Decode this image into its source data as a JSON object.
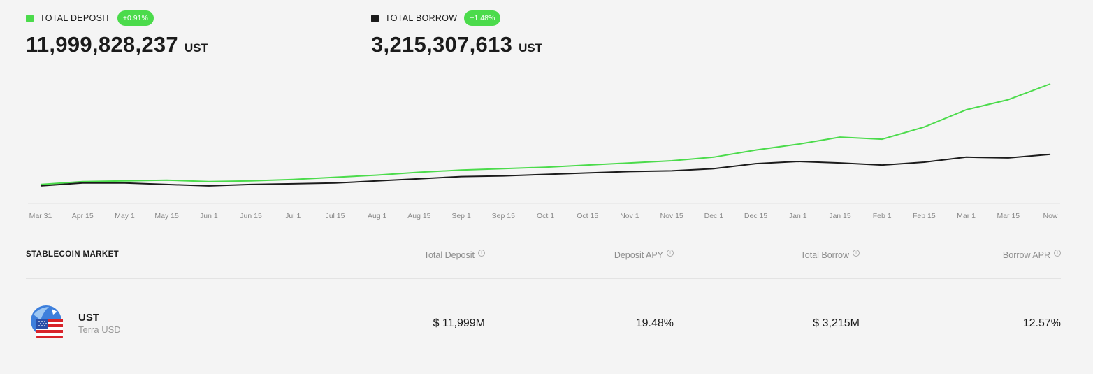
{
  "summary": {
    "deposit": {
      "label": "TOTAL DEPOSIT",
      "change": "+0.91%",
      "value": "11,999,828,237",
      "unit": "UST",
      "color": "#4bdb4b"
    },
    "borrow": {
      "label": "TOTAL BORROW",
      "change": "+1.48%",
      "value": "3,215,307,613",
      "unit": "UST",
      "color": "#1b1b1b"
    }
  },
  "chart_data": {
    "type": "line",
    "x": [
      "Mar 31",
      "Apr 15",
      "May 1",
      "May 15",
      "Jun 1",
      "Jun 15",
      "Jul 1",
      "Jul 15",
      "Aug 1",
      "Aug 15",
      "Sep 1",
      "Sep 15",
      "Oct 1",
      "Oct 15",
      "Nov 1",
      "Nov 15",
      "Dec 1",
      "Dec 15",
      "Jan 1",
      "Jan 15",
      "Feb 1",
      "Feb 15",
      "Mar 1",
      "Mar 15",
      "Now"
    ],
    "series": [
      {
        "color": "#4bdb4b",
        "values": [
          0.2,
          0.4,
          0.45,
          0.5,
          0.4,
          0.45,
          0.55,
          0.7,
          0.85,
          1.05,
          1.2,
          1.3,
          1.4,
          1.55,
          1.7,
          1.85,
          2.1,
          2.6,
          3.0,
          3.5,
          3.35,
          4.2,
          5.4,
          6.1,
          7.2
        ]
      },
      {
        "color": "#1b1b1b",
        "values": [
          0.1,
          0.3,
          0.3,
          0.2,
          0.1,
          0.2,
          0.25,
          0.3,
          0.45,
          0.6,
          0.75,
          0.8,
          0.9,
          1.0,
          1.1,
          1.15,
          1.3,
          1.65,
          1.8,
          1.7,
          1.55,
          1.75,
          2.1,
          2.05,
          2.3
        ]
      }
    ],
    "grid": false,
    "legend": "none"
  },
  "table": {
    "title": "STABLECOIN MARKET",
    "columns": [
      "Total Deposit",
      "Deposit APY",
      "Total Borrow",
      "Borrow APR"
    ],
    "info_icon": "info-circle-icon",
    "rows": [
      {
        "symbol": "UST",
        "name": "Terra USD",
        "icon": "ust-flag-icon",
        "total_deposit": "$ 11,999M",
        "deposit_apy": "19.48%",
        "total_borrow": "$ 3,215M",
        "borrow_apr": "12.57%"
      }
    ]
  }
}
